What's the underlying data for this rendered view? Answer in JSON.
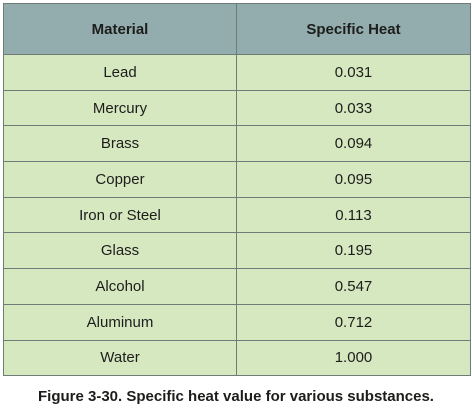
{
  "table": {
    "headers": [
      "Material",
      "Specific Heat"
    ],
    "rows": [
      [
        "Lead",
        "0.031"
      ],
      [
        "Mercury",
        "0.033"
      ],
      [
        "Brass",
        "0.094"
      ],
      [
        "Copper",
        "0.095"
      ],
      [
        "Iron or Steel",
        "0.113"
      ],
      [
        "Glass",
        "0.195"
      ],
      [
        "Alcohol",
        "0.547"
      ],
      [
        "Aluminum",
        "0.712"
      ],
      [
        "Water",
        "1.000"
      ]
    ]
  },
  "caption": "Figure 3-30. Specific heat value for various substances.",
  "colors": {
    "header_bg": "#93adaf",
    "cell_bg": "#d6e8c0",
    "border": "#6f7b76",
    "text": "#1d1d1b"
  }
}
